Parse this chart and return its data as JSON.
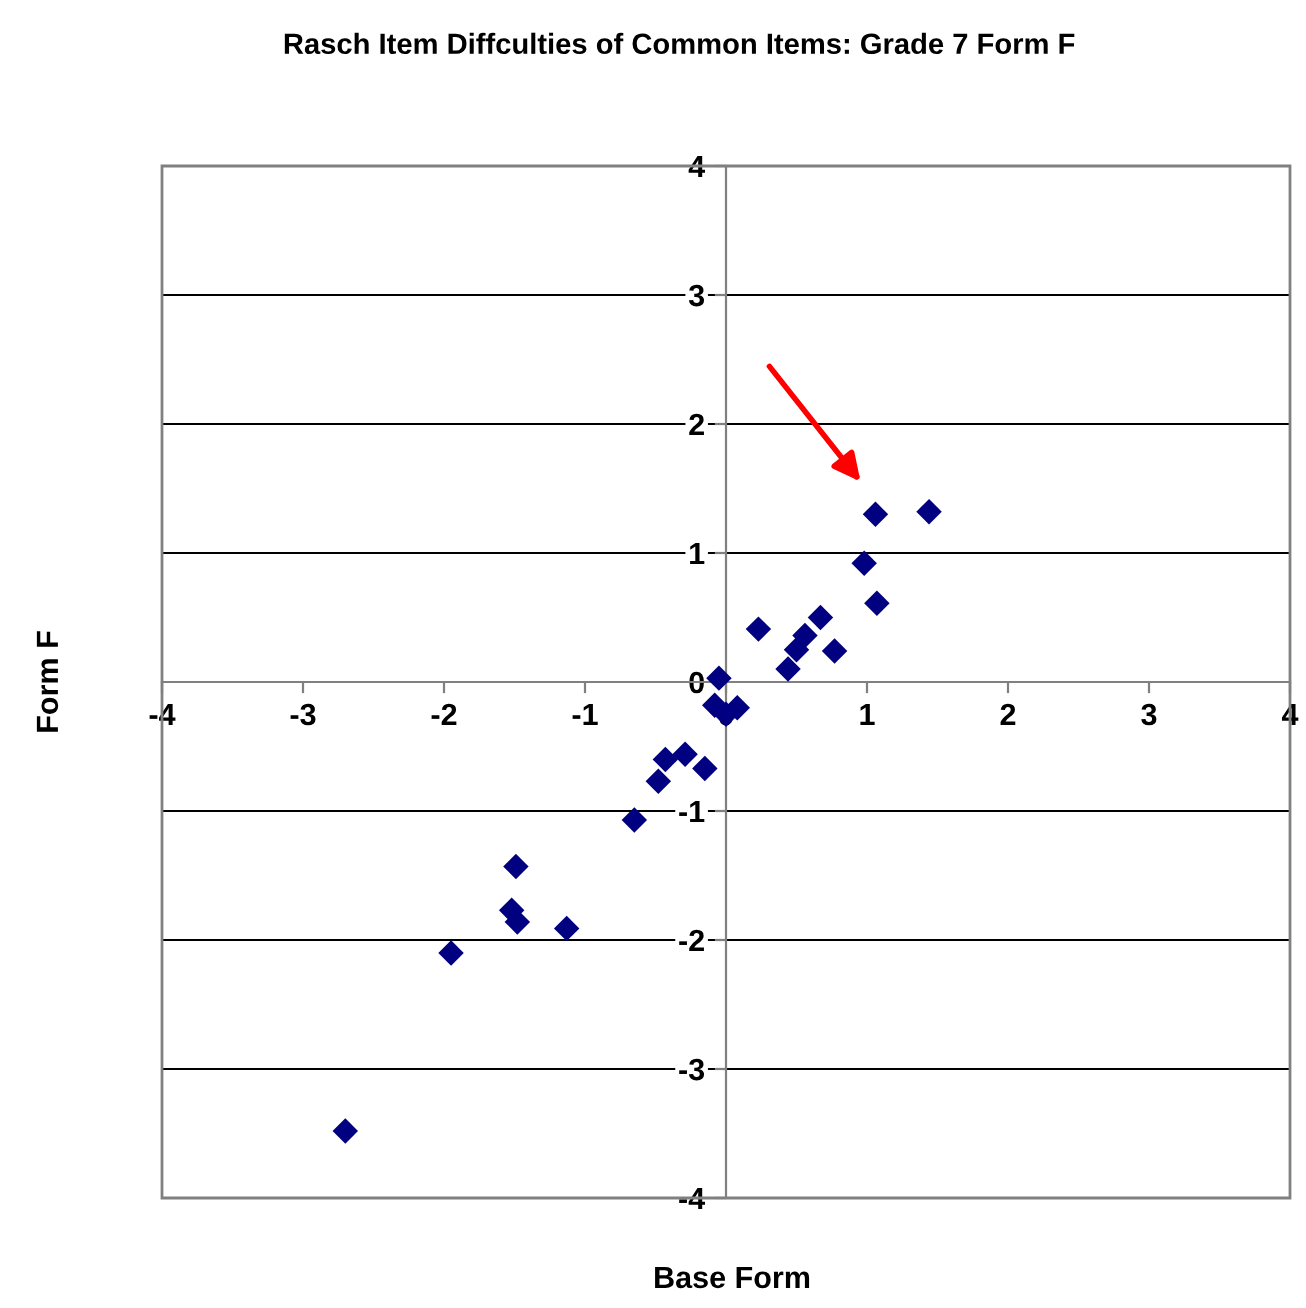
{
  "chart_data": {
    "type": "scatter",
    "title": "Rasch Item Diffculties of Common Items: Grade 7 Form F",
    "xlabel": "Base Form",
    "ylabel": "Form F",
    "x": [
      1.06,
      1.44,
      0.98,
      1.07,
      0.23,
      0.67,
      0.56,
      0.77,
      0.5,
      0.44,
      -0.05,
      -0.08,
      0.08,
      0.0,
      -0.43,
      -0.29,
      -0.48,
      -0.15,
      -0.65,
      -1.49,
      -1.52,
      -1.48,
      -1.13,
      -1.95,
      -2.7
    ],
    "values": [
      1.3,
      1.32,
      0.92,
      0.61,
      0.41,
      0.5,
      0.36,
      0.24,
      0.25,
      0.1,
      0.03,
      -0.18,
      -0.2,
      -0.25,
      -0.6,
      -0.56,
      -0.77,
      -0.67,
      -1.07,
      -1.43,
      -1.77,
      -1.86,
      -1.91,
      -2.1,
      -3.48
    ],
    "color": "#000080",
    "marker": "diamond",
    "xlim": [
      -4,
      4
    ],
    "ylim": [
      -4,
      4
    ],
    "xticks": [
      -4,
      -3,
      -2,
      -1,
      0,
      1,
      2,
      3,
      4
    ],
    "yticks": [
      -4,
      -3,
      -2,
      -1,
      0,
      1,
      2,
      3,
      4
    ],
    "grid": "y",
    "legend": false
  }
}
